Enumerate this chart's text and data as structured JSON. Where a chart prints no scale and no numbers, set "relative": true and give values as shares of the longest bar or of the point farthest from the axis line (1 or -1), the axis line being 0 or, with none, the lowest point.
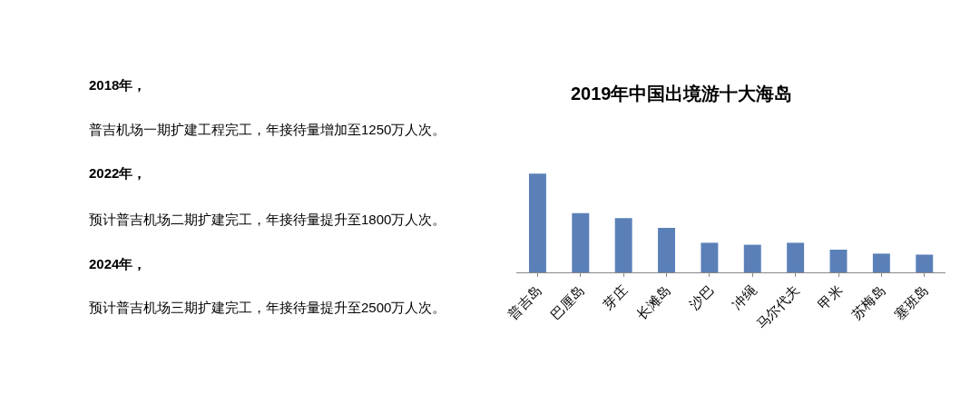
{
  "chart_data": [
    {
      "type": "other",
      "annotations": [
        "2018年，",
        "普吉机场一期扩建工程完工，年接待量增加至1250万人次。",
        "2022年，",
        "预计普吉机场二期扩建完工，年接待量提升至1800万人次。",
        "2024年，",
        "预计普吉机场三期扩建完工，年接待量提升至2500万人次。"
      ]
    },
    {
      "type": "bar",
      "title": "2019年中国出境游十大海岛",
      "relative": true,
      "categories": [
        "普吉岛",
        "巴厘岛",
        "芽庄",
        "长滩岛",
        "沙巴",
        "冲绳",
        "马尔代夫",
        "甲米",
        "苏梅岛",
        "塞班岛"
      ],
      "values": [
        1,
        0.6,
        0.55,
        0.45,
        0.3,
        0.28,
        0.3,
        0.23,
        0.19,
        0.18
      ],
      "color": "#5b80b8"
    }
  ]
}
